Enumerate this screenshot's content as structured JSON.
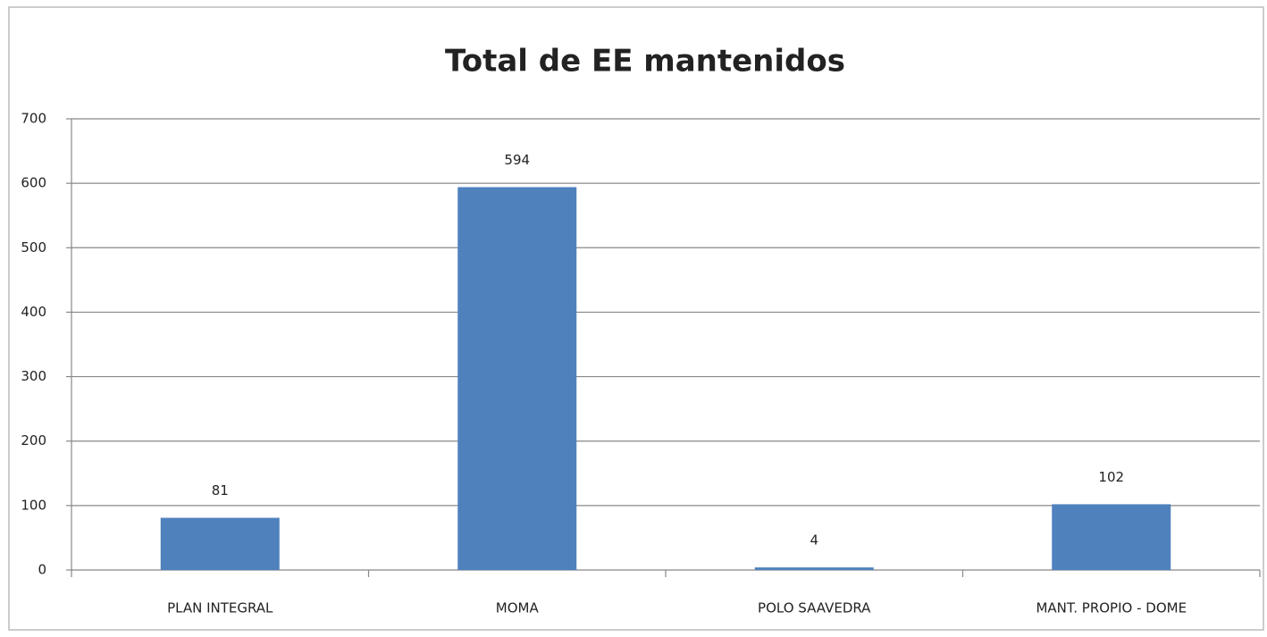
{
  "chart_data": {
    "type": "bar",
    "title": "Total de EE mantenidos",
    "categories": [
      "PLAN INTEGRAL",
      "MOMA",
      "POLO SAAVEDRA",
      "MANT. PROPIO  -  DOME"
    ],
    "values": [
      81,
      594,
      4,
      102
    ],
    "color": "#4f81bd",
    "ylim": [
      0,
      700
    ],
    "yticks": [
      0,
      100,
      200,
      300,
      400,
      500,
      600,
      700
    ],
    "grid": true
  }
}
